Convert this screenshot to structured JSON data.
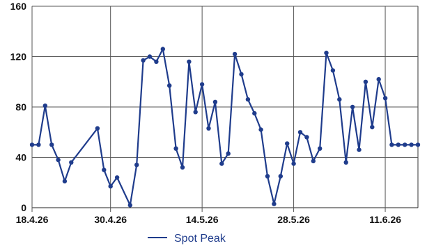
{
  "chart_data": {
    "type": "line",
    "title": "",
    "xlabel": "",
    "ylabel": "",
    "x_ticks": [
      "18.4.26",
      "30.4.26",
      "14.5.26",
      "28.5.26",
      "11.6.26"
    ],
    "y_ticks": [
      0,
      40,
      80,
      120,
      160
    ],
    "ylim": [
      0,
      160
    ],
    "xlim": [
      "2026-04-18",
      "2026-06-16"
    ],
    "grid": true,
    "legend_position": "bottom",
    "series": [
      {
        "name": "Spot Peak",
        "color": "#1f3c8c",
        "x": [
          "2026-04-18",
          "2026-04-19",
          "2026-04-20",
          "2026-04-21",
          "2026-04-22",
          "2026-04-23",
          "2026-04-24",
          "2026-04-28",
          "2026-04-29",
          "2026-04-30",
          "2026-05-01",
          "2026-05-03",
          "2026-05-04",
          "2026-05-05",
          "2026-05-06",
          "2026-05-07",
          "2026-05-08",
          "2026-05-09",
          "2026-05-10",
          "2026-05-11",
          "2026-05-12",
          "2026-05-13",
          "2026-05-14",
          "2026-05-15",
          "2026-05-16",
          "2026-05-17",
          "2026-05-18",
          "2026-05-19",
          "2026-05-20",
          "2026-05-21",
          "2026-05-22",
          "2026-05-23",
          "2026-05-24",
          "2026-05-25",
          "2026-05-26",
          "2026-05-27",
          "2026-05-28",
          "2026-05-29",
          "2026-05-30",
          "2026-05-31",
          "2026-06-01",
          "2026-06-02",
          "2026-06-03",
          "2026-06-04",
          "2026-06-05",
          "2026-06-06",
          "2026-06-07",
          "2026-06-08",
          "2026-06-09",
          "2026-06-10",
          "2026-06-11",
          "2026-06-12",
          "2026-06-13",
          "2026-06-14",
          "2026-06-15",
          "2026-06-16"
        ],
        "values": [
          50,
          50,
          81,
          50,
          38,
          21,
          36,
          63,
          30,
          17,
          24,
          2,
          34,
          117,
          120,
          116,
          126,
          97,
          47,
          32,
          116,
          76,
          98,
          63,
          84,
          35,
          43,
          122,
          106,
          86,
          75,
          62,
          25,
          3,
          25,
          51,
          35,
          60,
          56,
          37,
          47,
          123,
          109,
          86,
          36,
          80,
          46,
          100,
          64,
          102,
          87,
          50,
          50,
          50,
          50,
          50
        ]
      }
    ]
  }
}
